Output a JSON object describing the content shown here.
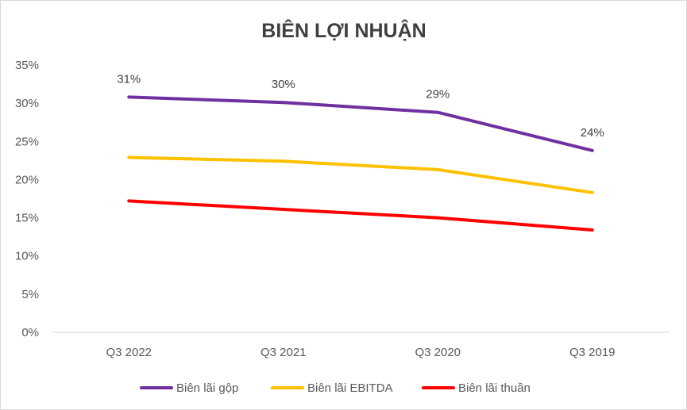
{
  "chart_data": {
    "type": "line",
    "title": "BIÊN LỢI NHUẬN",
    "categories": [
      "Q3 2022",
      "Q3 2021",
      "Q3 2020",
      "Q3 2019"
    ],
    "ylim": [
      0,
      35
    ],
    "y_ticks": [
      "0%",
      "5%",
      "10%",
      "15%",
      "20%",
      "25%",
      "30%",
      "35%"
    ],
    "grid": false,
    "legend_position": "bottom",
    "series": [
      {
        "name": "Biên lãi gộp",
        "color": "#7030a0",
        "values": [
          30.8,
          30.1,
          28.8,
          23.8
        ],
        "data_labels": [
          "31%",
          "30%",
          "29%",
          "24%"
        ]
      },
      {
        "name": "Biên lãi EBITDA",
        "color": "#ffc000",
        "values": [
          22.9,
          22.4,
          21.3,
          18.3
        ],
        "data_labels": []
      },
      {
        "name": "Biên lãi thuần",
        "color": "#ff0000",
        "values": [
          17.2,
          16.1,
          15.0,
          13.4
        ],
        "data_labels": []
      }
    ]
  }
}
